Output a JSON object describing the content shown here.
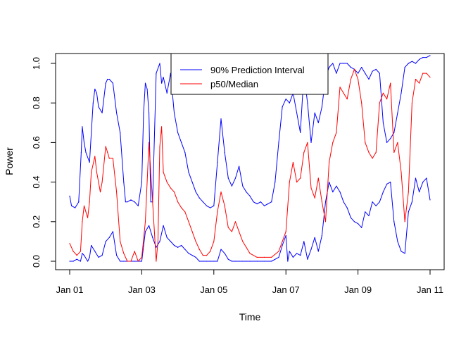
{
  "chart_data": {
    "type": "line",
    "xlabel": "Time",
    "ylabel": "Power",
    "x_range_days": [
      0,
      10
    ],
    "ylim": [
      0,
      1.0
    ],
    "x_ticks": [
      {
        "day": 0,
        "label": "Jan 01"
      },
      {
        "day": 2,
        "label": "Jan 03"
      },
      {
        "day": 4,
        "label": "Jan 05"
      },
      {
        "day": 6,
        "label": "Jan 07"
      },
      {
        "day": 8,
        "label": "Jan 09"
      },
      {
        "day": 10,
        "label": "Jan 11"
      }
    ],
    "y_ticks": [
      {
        "value": 0.0,
        "label": "0.0"
      },
      {
        "value": 0.2,
        "label": "0.2"
      },
      {
        "value": 0.4,
        "label": "0.4"
      },
      {
        "value": 0.6,
        "label": "0.6"
      },
      {
        "value": 0.8,
        "label": "0.8"
      },
      {
        "value": 1.0,
        "label": "1.0"
      }
    ],
    "legend": {
      "placement": "top-center",
      "entries": [
        {
          "label": "90% Prediction Interval",
          "color": "#0000ff"
        },
        {
          "label": "p50/Median",
          "color": "#ff0000"
        }
      ]
    },
    "series": [
      {
        "name": "90% Prediction Interval",
        "color": "#0000ff",
        "role": "upper",
        "x": [
          0,
          0.05,
          0.15,
          0.25,
          0.32,
          0.35,
          0.4,
          0.45,
          0.55,
          0.65,
          0.7,
          0.75,
          0.8,
          0.9,
          1.0,
          1.05,
          1.1,
          1.2,
          1.3,
          1.4,
          1.5,
          1.55,
          1.6,
          1.7,
          1.8,
          1.9,
          2.0,
          2.05,
          2.1,
          2.15,
          2.2,
          2.25,
          2.3,
          2.4,
          2.5,
          2.55,
          2.6,
          2.7,
          2.8,
          2.9,
          3.0,
          3.1,
          3.2,
          3.3,
          3.4,
          3.5,
          3.6,
          3.7,
          3.8,
          3.9,
          4.0,
          4.1,
          4.2,
          4.3,
          4.4,
          4.5,
          4.6,
          4.7,
          4.8,
          4.9,
          5.0,
          5.1,
          5.2,
          5.3,
          5.4,
          5.5,
          5.6,
          5.7,
          5.8,
          5.9,
          6.0,
          6.1,
          6.2,
          6.3,
          6.4,
          6.5,
          6.6,
          6.7,
          6.8,
          6.9,
          7.0,
          7.1,
          7.2,
          7.3,
          7.4,
          7.5,
          7.6,
          7.7,
          7.8,
          7.9,
          8.0,
          8.1,
          8.2,
          8.3,
          8.4,
          8.5,
          8.6,
          8.7,
          8.8,
          8.9,
          9.0,
          9.1,
          9.2,
          9.3,
          9.4,
          9.5,
          9.6,
          9.7,
          9.8,
          9.9,
          10.0
        ],
        "y": [
          0.33,
          0.28,
          0.27,
          0.3,
          0.55,
          0.68,
          0.6,
          0.55,
          0.5,
          0.8,
          0.87,
          0.85,
          0.78,
          0.75,
          0.9,
          0.92,
          0.92,
          0.9,
          0.75,
          0.65,
          0.4,
          0.3,
          0.3,
          0.31,
          0.3,
          0.28,
          0.4,
          0.75,
          0.9,
          0.87,
          0.75,
          0.3,
          0.3,
          0.95,
          1.0,
          0.9,
          0.93,
          0.85,
          0.95,
          0.75,
          0.65,
          0.6,
          0.55,
          0.45,
          0.4,
          0.35,
          0.32,
          0.3,
          0.28,
          0.27,
          0.28,
          0.5,
          0.72,
          0.55,
          0.42,
          0.38,
          0.42,
          0.48,
          0.38,
          0.35,
          0.33,
          0.3,
          0.29,
          0.3,
          0.28,
          0.29,
          0.3,
          0.4,
          0.6,
          0.78,
          0.82,
          0.8,
          0.85,
          0.75,
          0.65,
          0.95,
          0.8,
          0.6,
          0.75,
          0.7,
          0.78,
          0.93,
          0.98,
          1.0,
          0.95,
          1.0,
          1.0,
          1.0,
          0.98,
          0.97,
          0.95,
          0.98,
          0.95,
          0.92,
          0.96,
          0.97,
          0.95,
          0.7,
          0.6,
          0.62,
          0.65,
          0.75,
          0.85,
          0.98,
          1.0,
          1.01,
          1.0,
          1.02,
          1.03,
          1.03,
          1.04
        ]
      },
      {
        "name": "90% Prediction Interval",
        "color": "#0000ff",
        "role": "lower",
        "x": [
          0,
          0.1,
          0.2,
          0.3,
          0.35,
          0.4,
          0.5,
          0.55,
          0.6,
          0.7,
          0.8,
          0.9,
          1.0,
          1.1,
          1.2,
          1.3,
          1.4,
          1.5,
          1.6,
          1.7,
          1.8,
          1.9,
          2.0,
          2.1,
          2.2,
          2.3,
          2.4,
          2.5,
          2.6,
          2.7,
          2.8,
          2.9,
          3.0,
          3.1,
          3.2,
          3.3,
          3.4,
          3.5,
          3.6,
          3.7,
          3.8,
          3.9,
          4.0,
          4.1,
          4.2,
          4.3,
          4.4,
          4.5,
          4.6,
          4.7,
          4.8,
          4.9,
          5.0,
          5.2,
          5.4,
          5.6,
          5.8,
          5.9,
          6.0,
          6.05,
          6.1,
          6.2,
          6.3,
          6.4,
          6.5,
          6.6,
          6.7,
          6.8,
          6.9,
          7.0,
          7.1,
          7.2,
          7.3,
          7.4,
          7.5,
          7.6,
          7.7,
          7.8,
          7.9,
          8.0,
          8.1,
          8.2,
          8.3,
          8.4,
          8.5,
          8.6,
          8.7,
          8.8,
          8.9,
          9.0,
          9.1,
          9.2,
          9.3,
          9.4,
          9.5,
          9.6,
          9.7,
          9.8,
          9.9,
          10.0
        ],
        "y": [
          0.0,
          0.0,
          0.01,
          0.0,
          0.04,
          0.03,
          0.0,
          0.02,
          0.08,
          0.05,
          0.02,
          0.03,
          0.1,
          0.12,
          0.15,
          0.03,
          0.0,
          0.0,
          0.0,
          0.0,
          0.0,
          0.0,
          0.0,
          0.15,
          0.18,
          0.12,
          0.07,
          0.1,
          0.18,
          0.12,
          0.1,
          0.08,
          0.07,
          0.08,
          0.06,
          0.04,
          0.03,
          0.02,
          0.0,
          0.0,
          0.0,
          0.0,
          0.0,
          0.0,
          0.06,
          0.04,
          0.01,
          0.0,
          0.0,
          0.0,
          0.0,
          0.0,
          0.0,
          0.0,
          0.0,
          0.0,
          0.02,
          0.08,
          0.13,
          0.0,
          0.05,
          0.02,
          0.04,
          0.03,
          0.1,
          0.01,
          0.06,
          0.12,
          0.05,
          0.13,
          0.3,
          0.4,
          0.35,
          0.38,
          0.35,
          0.3,
          0.27,
          0.22,
          0.2,
          0.19,
          0.17,
          0.25,
          0.23,
          0.3,
          0.28,
          0.3,
          0.35,
          0.39,
          0.4,
          0.2,
          0.1,
          0.05,
          0.04,
          0.25,
          0.3,
          0.42,
          0.35,
          0.4,
          0.42,
          0.31
        ]
      },
      {
        "name": "p50/Median",
        "color": "#ff0000",
        "role": "median",
        "x": [
          0,
          0.1,
          0.2,
          0.3,
          0.35,
          0.4,
          0.45,
          0.5,
          0.55,
          0.6,
          0.7,
          0.75,
          0.8,
          0.85,
          0.9,
          1.0,
          1.05,
          1.1,
          1.2,
          1.3,
          1.4,
          1.5,
          1.6,
          1.7,
          1.8,
          1.9,
          2.0,
          2.1,
          2.2,
          2.3,
          2.4,
          2.45,
          2.5,
          2.55,
          2.6,
          2.7,
          2.8,
          2.9,
          3.0,
          3.1,
          3.2,
          3.3,
          3.4,
          3.5,
          3.6,
          3.7,
          3.8,
          3.9,
          4.0,
          4.1,
          4.2,
          4.3,
          4.4,
          4.5,
          4.6,
          4.7,
          4.8,
          4.9,
          5.0,
          5.2,
          5.4,
          5.6,
          5.8,
          5.9,
          6.0,
          6.1,
          6.2,
          6.3,
          6.4,
          6.5,
          6.6,
          6.7,
          6.8,
          6.9,
          7.0,
          7.1,
          7.2,
          7.3,
          7.4,
          7.5,
          7.6,
          7.7,
          7.8,
          7.9,
          8.0,
          8.1,
          8.2,
          8.3,
          8.4,
          8.5,
          8.6,
          8.7,
          8.8,
          8.9,
          9.0,
          9.1,
          9.2,
          9.3,
          9.4,
          9.5,
          9.6,
          9.7,
          9.8,
          9.9,
          10.0
        ],
        "y": [
          0.09,
          0.05,
          0.03,
          0.05,
          0.2,
          0.28,
          0.25,
          0.22,
          0.3,
          0.45,
          0.53,
          0.45,
          0.4,
          0.35,
          0.4,
          0.58,
          0.55,
          0.52,
          0.52,
          0.35,
          0.1,
          0.04,
          0.0,
          0.0,
          0.05,
          0.0,
          0.02,
          0.2,
          0.6,
          0.3,
          0.0,
          0.1,
          0.58,
          0.68,
          0.45,
          0.4,
          0.37,
          0.35,
          0.3,
          0.27,
          0.25,
          0.2,
          0.15,
          0.1,
          0.06,
          0.03,
          0.03,
          0.05,
          0.1,
          0.25,
          0.35,
          0.28,
          0.17,
          0.15,
          0.2,
          0.15,
          0.1,
          0.07,
          0.04,
          0.02,
          0.02,
          0.02,
          0.05,
          0.1,
          0.15,
          0.4,
          0.5,
          0.4,
          0.42,
          0.55,
          0.6,
          0.37,
          0.32,
          0.42,
          0.3,
          0.2,
          0.5,
          0.6,
          0.65,
          0.88,
          0.85,
          0.82,
          0.92,
          0.97,
          0.92,
          0.8,
          0.6,
          0.55,
          0.52,
          0.55,
          0.8,
          0.85,
          0.82,
          0.9,
          0.55,
          0.6,
          0.45,
          0.2,
          0.35,
          0.8,
          0.92,
          0.9,
          0.95,
          0.95,
          0.93
        ]
      }
    ]
  }
}
